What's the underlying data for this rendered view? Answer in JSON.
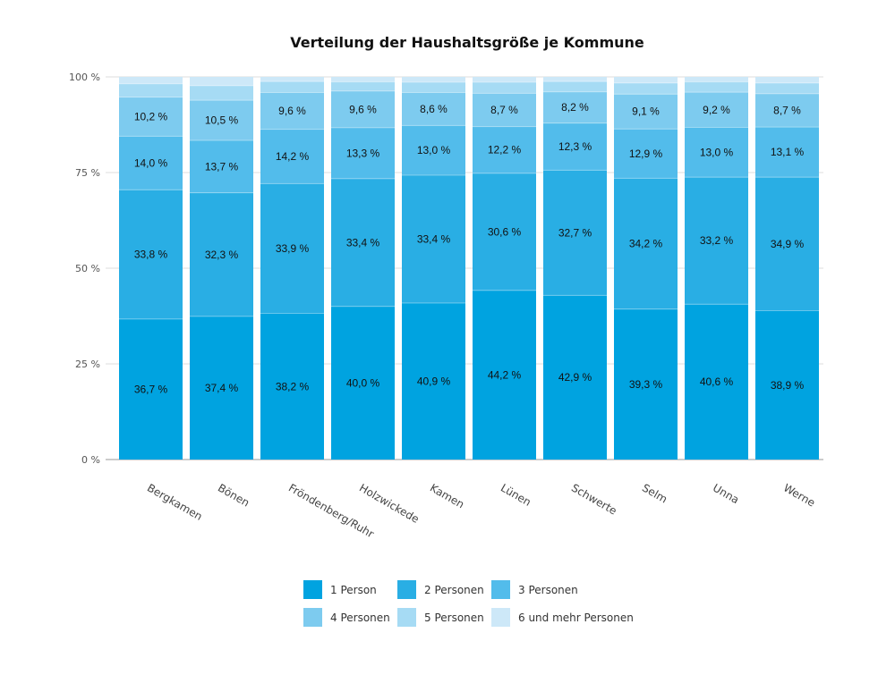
{
  "chart_data": {
    "type": "bar",
    "stacked": true,
    "percent": true,
    "title": "Verteilung der Haushaltsgröße je Kommune",
    "xlabel": "",
    "ylabel": "",
    "ylim": [
      0,
      100
    ],
    "yticks": [
      "0 %",
      "25 %",
      "50 %",
      "75 %",
      "100 %"
    ],
    "ytick_values": [
      0,
      25,
      50,
      75,
      100
    ],
    "grid": true,
    "legend_position": "bottom",
    "categories": [
      "Bergkamen",
      "Bönen",
      "Fröndenberg/Ruhr",
      "Holzwickede",
      "Kamen",
      "Lünen",
      "Schwerte",
      "Selm",
      "Unna",
      "Werne"
    ],
    "series": [
      {
        "name": "1 Person",
        "color": "#00a3e0",
        "labeled": true,
        "values": [
          36.7,
          37.4,
          38.2,
          40.0,
          40.9,
          44.2,
          42.9,
          39.3,
          40.6,
          38.9
        ]
      },
      {
        "name": "2 Personen",
        "color": "#29aee4",
        "labeled": true,
        "values": [
          33.8,
          32.3,
          33.9,
          33.4,
          33.4,
          30.6,
          32.7,
          34.2,
          33.2,
          34.9
        ]
      },
      {
        "name": "3 Personen",
        "color": "#52bceb",
        "labeled": true,
        "values": [
          14.0,
          13.7,
          14.2,
          13.3,
          13.0,
          12.2,
          12.3,
          12.9,
          13.0,
          13.1
        ]
      },
      {
        "name": "4 Personen",
        "color": "#7dcbef",
        "labeled": true,
        "values": [
          10.2,
          10.5,
          9.6,
          9.6,
          8.6,
          8.7,
          8.2,
          9.1,
          9.2,
          8.7
        ]
      },
      {
        "name": "5 Personen",
        "color": "#a6dbf4",
        "labeled": false,
        "values": [
          3.5,
          3.8,
          2.9,
          2.4,
          2.7,
          2.9,
          2.7,
          2.9,
          2.7,
          2.8
        ]
      },
      {
        "name": "6 und mehr Personen",
        "color": "#cde8f8",
        "labeled": false,
        "values": [
          1.8,
          2.3,
          1.2,
          1.3,
          1.4,
          1.4,
          1.2,
          1.6,
          1.3,
          1.6
        ]
      }
    ]
  }
}
